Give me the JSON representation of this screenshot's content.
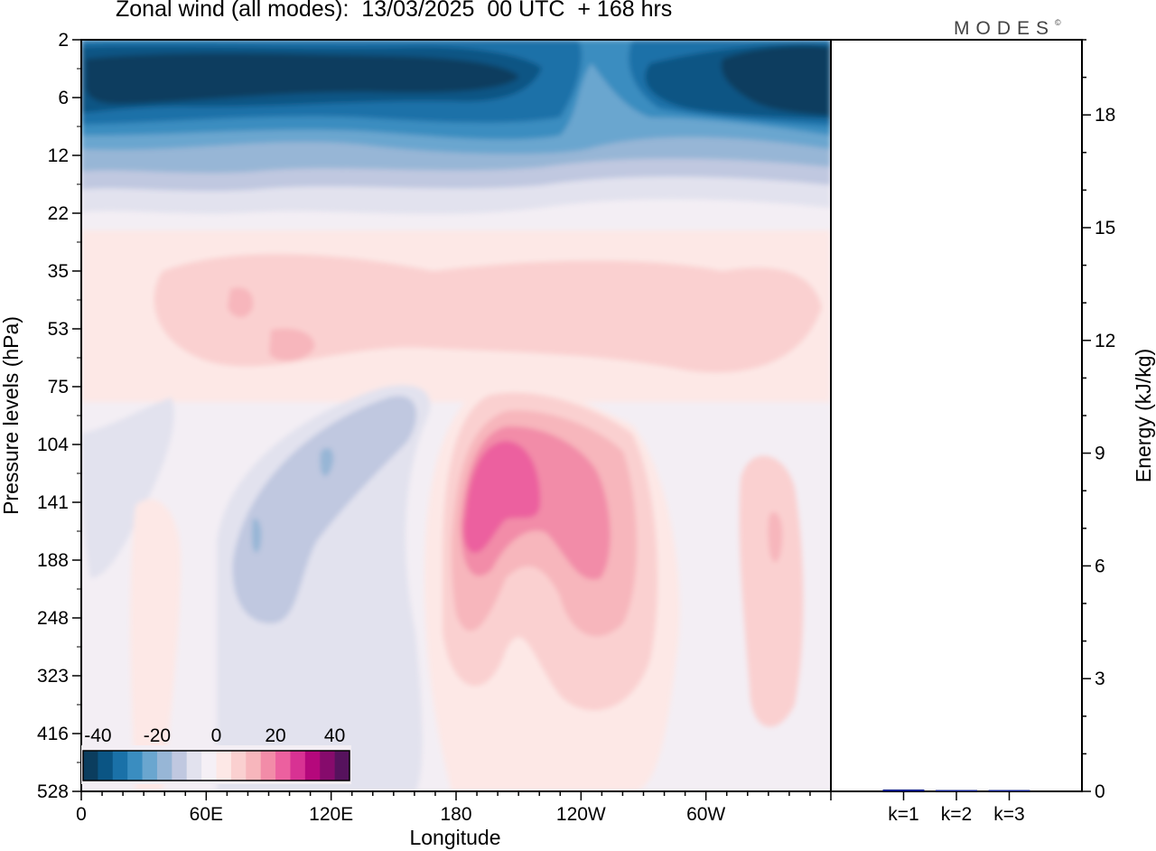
{
  "title": "Zonal wind (all modes):  13/03/2025  00 UTC  + 168 hrs",
  "brand": "MODES",
  "brand_mark": "©",
  "chart_data": [
    {
      "type": "heatmap",
      "xlabel": "Longitude",
      "ylabel": "Pressure levels (hPa)",
      "x_ticks": [
        "0",
        "60E",
        "120E",
        "180",
        "120W",
        "60W"
      ],
      "y_ticks": [
        "2",
        "6",
        "12",
        "22",
        "35",
        "53",
        "75",
        "104",
        "141",
        "188",
        "248",
        "323",
        "416",
        "528"
      ],
      "y_scale": "log-like (model levels)",
      "colorbar": {
        "labels": [
          "-40",
          "-20",
          "0",
          "20",
          "40"
        ],
        "min": -45,
        "max": 45,
        "step": 5,
        "colors": [
          "#0b3d5e",
          "#0b5584",
          "#1a71a8",
          "#3a8dc0",
          "#6aa6cf",
          "#97b6d6",
          "#c0c8e0",
          "#e2e2ee",
          "#f5f0f6",
          "#fde8e6",
          "#fad0d0",
          "#f7b6bc",
          "#f28ca8",
          "#ec609f",
          "#d83293",
          "#b5087c",
          "#860b6c",
          "#56125d"
        ]
      },
      "features": [
        {
          "name": "stratospheric easterly jet",
          "value": -35,
          "lon_range": [
            0,
            360
          ],
          "level": "2-12 hPa"
        },
        {
          "name": "westerly maximum near 165W",
          "value": 25,
          "lon_range": [
            180,
            225
          ],
          "level": "100-200 hPa"
        },
        {
          "name": "easterly region near 90E",
          "value": -12,
          "lon_range": [
            60,
            160
          ],
          "level": "75-330 hPa"
        },
        {
          "name": "westerly patch near 30W",
          "value": 15,
          "lon_range": [
            320,
            345
          ],
          "level": "104-323 hPa"
        }
      ]
    },
    {
      "type": "bar",
      "categories": [
        "k=1",
        "k=2",
        "k=3"
      ],
      "values": [
        0.05,
        0.02,
        0.03
      ],
      "ylabel": "Energy (kJ/kg)",
      "y_ticks": [
        "0",
        "3",
        "6",
        "9",
        "12",
        "15",
        "18"
      ],
      "ylim": [
        0,
        20
      ],
      "bar_color": "#0a1a8a"
    }
  ]
}
